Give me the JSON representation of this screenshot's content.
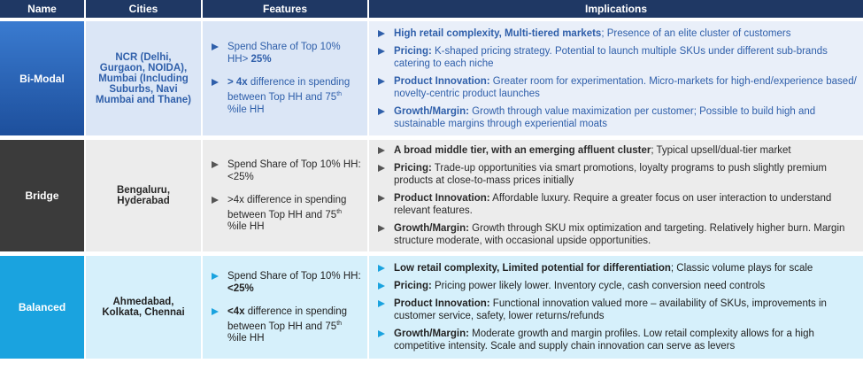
{
  "header": [
    "Name",
    "Cities",
    "Features",
    "Implications"
  ],
  "rows": [
    {
      "name": "Bi-Modal",
      "cities": "NCR (Delhi, Gurgaon, NOIDA), Mumbai (Including Suburbs, Navi Mumbai and Thane)",
      "features": [
        [
          {
            "text": "Spend Share of Top 10% HH> "
          },
          {
            "text": "25%",
            "bold": true
          }
        ],
        [
          {
            "text": "> 4x",
            "bold": true
          },
          {
            "text": " difference in spending between Top HH and 75"
          },
          {
            "text": "th",
            "sup": true
          },
          {
            "text": " %ile HH"
          }
        ]
      ],
      "implications": [
        [
          {
            "text": "High retail complexity, Multi-tiered markets",
            "bold": true
          },
          {
            "text": "; Presence of an elite cluster of customers"
          }
        ],
        [
          {
            "text": "Pricing:",
            "bold": true
          },
          {
            "text": " K-shaped pricing strategy.  Potential to launch multiple SKUs under different sub-brands catering to each niche"
          }
        ],
        [
          {
            "text": "Product Innovation:",
            "bold": true
          },
          {
            "text": " Greater room for experimentation. Micro-markets for high-end/experience based/ novelty-centric product launches"
          }
        ],
        [
          {
            "text": "Growth/Margin:",
            "bold": true
          },
          {
            "text": " Growth through value maximization per customer; Possible to build high and sustainable margins through experiential moats"
          }
        ]
      ]
    },
    {
      "name": "Bridge",
      "cities": "Bengaluru, Hyderabad",
      "features": [
        [
          {
            "text": "Spend Share of Top 10% HH: <25%"
          }
        ],
        [
          {
            "text": ">4x difference in spending between Top HH and 75"
          },
          {
            "text": "th",
            "sup": true
          },
          {
            "text": " %ile HH"
          }
        ]
      ],
      "implications": [
        [
          {
            "text": "A broad middle tier, with an emerging affluent cluster",
            "bold": true
          },
          {
            "text": "; Typical upsell/dual-tier market"
          }
        ],
        [
          {
            "text": "Pricing:",
            "bold": true
          },
          {
            "text": " Trade-up opportunities via smart promotions, loyalty programs to push slightly premium products at close-to-mass prices initially"
          }
        ],
        [
          {
            "text": "Product Innovation:",
            "bold": true
          },
          {
            "text": " Affordable luxury. Require a greater focus on user interaction to understand relevant features."
          }
        ],
        [
          {
            "text": "Growth/Margin:",
            "bold": true
          },
          {
            "text": " Growth through SKU mix optimization and targeting. Relatively higher burn. Margin structure moderate, with occasional upside opportunities."
          }
        ]
      ]
    },
    {
      "name": "Balanced",
      "cities": "Ahmedabad, Kolkata, Chennai",
      "features": [
        [
          {
            "text": "Spend Share of Top 10% HH: "
          },
          {
            "text": "<25%",
            "bold": true
          }
        ],
        [
          {
            "text": "<4x",
            "bold": true
          },
          {
            "text": " difference in spending between Top HH and 75"
          },
          {
            "text": "th",
            "sup": true
          },
          {
            "text": " %ile HH"
          }
        ]
      ],
      "implications": [
        [
          {
            "text": "Low retail complexity, Limited potential for differentiation",
            "bold": true
          },
          {
            "text": "; Classic volume plays for scale"
          }
        ],
        [
          {
            "text": "Pricing:",
            "bold": true
          },
          {
            "text": " Pricing power likely lower. Inventory cycle, cash conversion need controls"
          }
        ],
        [
          {
            "text": "Product Innovation:",
            "bold": true
          },
          {
            "text": " Functional innovation valued more – availability of SKUs, improvements in customer service, safety, lower returns/refunds"
          }
        ],
        [
          {
            "text": "Growth/Margin:",
            "bold": true
          },
          {
            "text": " Moderate growth and margin profiles. Low retail complexity allows for a high competitive intensity. Scale and supply chain innovation can serve as levers"
          }
        ]
      ]
    }
  ]
}
